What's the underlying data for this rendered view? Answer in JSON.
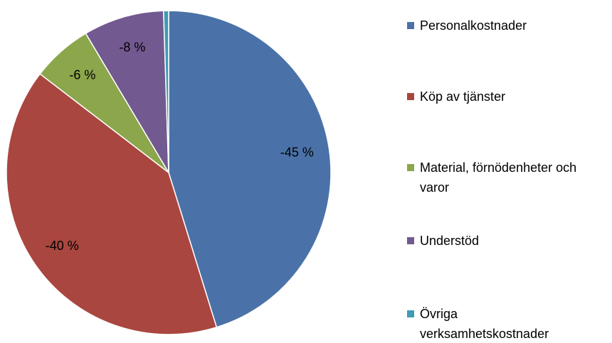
{
  "chart_data": {
    "type": "pie",
    "categories": [
      "Personalkostnader",
      "Köp av tjänster",
      "Material, förnödenheter och varor",
      "Understöd",
      "Övriga verksamhetskostnader"
    ],
    "values": [
      -45,
      -40,
      -6,
      -8,
      -0.5
    ],
    "value_labels": [
      "-45 %",
      "-40 %",
      "-6 %",
      "-8 %",
      null
    ],
    "colors": [
      "#4a72a8",
      "#a9463f",
      "#8ba64b",
      "#72598f",
      "#3f9cb3"
    ],
    "legend": "right"
  }
}
